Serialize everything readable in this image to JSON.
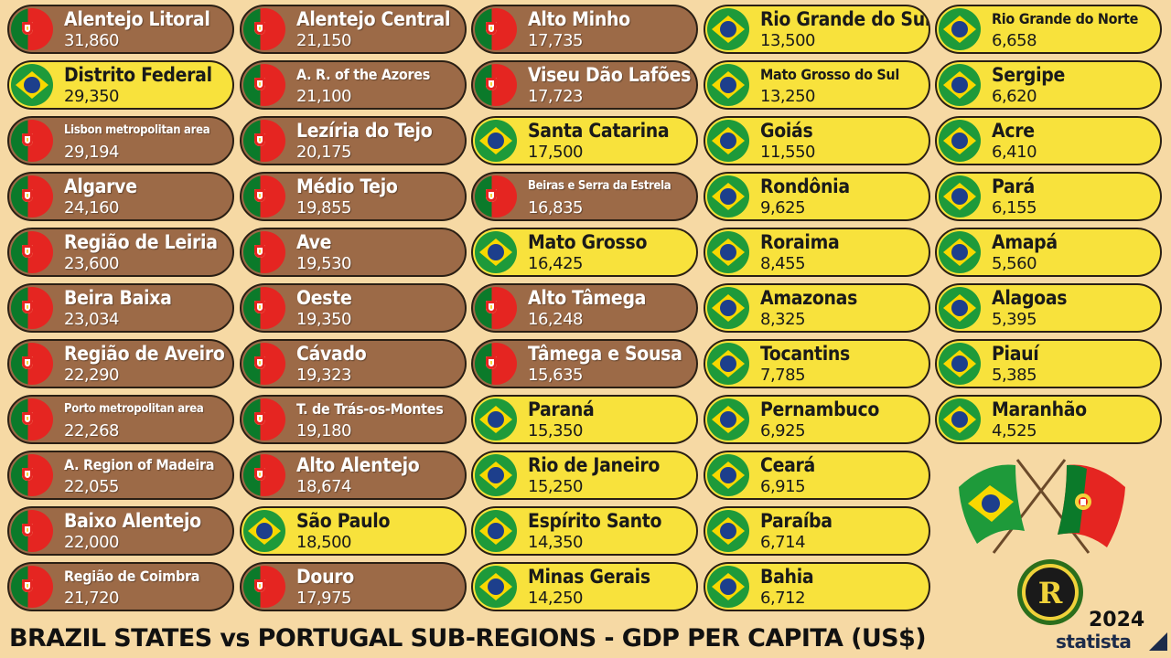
{
  "title": "BRAZIL STATES vs PORTUGAL SUB-REGIONS - GDP PER CAPITA (US$)",
  "year": "2024",
  "source": "statista",
  "colors": {
    "brazil_pill": "#f8e23c",
    "portugal_pill": "#9c6a47",
    "background": "#f6d9a4"
  },
  "logo_letter": "R",
  "columns": [
    [
      {
        "name": "Alentejo Litoral",
        "value": "31,860",
        "country": "pt"
      },
      {
        "name": "Distrito Federal",
        "value": "29,350",
        "country": "br"
      },
      {
        "name": "Lisbon metropolitan area",
        "value": "29,194",
        "country": "pt",
        "small": true
      },
      {
        "name": "Algarve",
        "value": "24,160",
        "country": "pt"
      },
      {
        "name": "Região de Leiria",
        "value": "23,600",
        "country": "pt"
      },
      {
        "name": "Beira Baixa",
        "value": "23,034",
        "country": "pt"
      },
      {
        "name": "Região de Aveiro",
        "value": "22,290",
        "country": "pt"
      },
      {
        "name": "Porto metropolitan area",
        "value": "22,268",
        "country": "pt",
        "small": true
      },
      {
        "name": "A. Region of Madeira",
        "value": "22,055",
        "country": "pt",
        "medium": true
      },
      {
        "name": "Baixo Alentejo",
        "value": "22,000",
        "country": "pt"
      },
      {
        "name": "Região de Coimbra",
        "value": "21,720",
        "country": "pt",
        "medium": true
      }
    ],
    [
      {
        "name": "Alentejo Central",
        "value": "21,150",
        "country": "pt"
      },
      {
        "name": "A. R. of the Azores",
        "value": "21,100",
        "country": "pt",
        "medium": true
      },
      {
        "name": "Lezíria do Tejo",
        "value": "20,175",
        "country": "pt"
      },
      {
        "name": "Médio Tejo",
        "value": "19,855",
        "country": "pt"
      },
      {
        "name": "Ave",
        "value": "19,530",
        "country": "pt"
      },
      {
        "name": "Oeste",
        "value": "19,350",
        "country": "pt"
      },
      {
        "name": "Cávado",
        "value": "19,323",
        "country": "pt"
      },
      {
        "name": "T. de Trás-os-Montes",
        "value": "19,180",
        "country": "pt",
        "medium": true
      },
      {
        "name": "Alto Alentejo",
        "value": "18,674",
        "country": "pt"
      },
      {
        "name": "São Paulo",
        "value": "18,500",
        "country": "br"
      },
      {
        "name": "Douro",
        "value": "17,975",
        "country": "pt"
      }
    ],
    [
      {
        "name": "Alto Minho",
        "value": "17,735",
        "country": "pt"
      },
      {
        "name": "Viseu Dão Lafões",
        "value": "17,723",
        "country": "pt"
      },
      {
        "name": "Santa Catarina",
        "value": "17,500",
        "country": "br"
      },
      {
        "name": "Beiras e Serra da Estrela",
        "value": "16,835",
        "country": "pt",
        "small": true
      },
      {
        "name": "Mato Grosso",
        "value": "16,425",
        "country": "br"
      },
      {
        "name": "Alto Tâmega",
        "value": "16,248",
        "country": "pt"
      },
      {
        "name": "Tâmega e Sousa",
        "value": "15,635",
        "country": "pt"
      },
      {
        "name": "Paraná",
        "value": "15,350",
        "country": "br"
      },
      {
        "name": "Rio de Janeiro",
        "value": "15,250",
        "country": "br"
      },
      {
        "name": "Espírito Santo",
        "value": "14,350",
        "country": "br"
      },
      {
        "name": "Minas Gerais",
        "value": "14,250",
        "country": "br"
      }
    ],
    [
      {
        "name": "Rio Grande do Sul",
        "value": "13,500",
        "country": "br"
      },
      {
        "name": "Mato Grosso do Sul",
        "value": "13,250",
        "country": "br",
        "medium": true
      },
      {
        "name": "Goiás",
        "value": "11,550",
        "country": "br"
      },
      {
        "name": "Rondônia",
        "value": "9,625",
        "country": "br"
      },
      {
        "name": "Roraima",
        "value": "8,455",
        "country": "br"
      },
      {
        "name": "Amazonas",
        "value": "8,325",
        "country": "br"
      },
      {
        "name": "Tocantins",
        "value": "7,785",
        "country": "br"
      },
      {
        "name": "Pernambuco",
        "value": "6,925",
        "country": "br"
      },
      {
        "name": "Ceará",
        "value": "6,915",
        "country": "br"
      },
      {
        "name": "Paraíba",
        "value": "6,714",
        "country": "br"
      },
      {
        "name": "Bahia",
        "value": "6,712",
        "country": "br"
      }
    ],
    [
      {
        "name": "Rio Grande do Norte",
        "value": "6,658",
        "country": "br",
        "medium": true
      },
      {
        "name": "Sergipe",
        "value": "6,620",
        "country": "br"
      },
      {
        "name": "Acre",
        "value": "6,410",
        "country": "br"
      },
      {
        "name": "Pará",
        "value": "6,155",
        "country": "br"
      },
      {
        "name": "Amapá",
        "value": "5,560",
        "country": "br"
      },
      {
        "name": "Alagoas",
        "value": "5,395",
        "country": "br"
      },
      {
        "name": "Piauí",
        "value": "5,385",
        "country": "br"
      },
      {
        "name": "Maranhão",
        "value": "4,525",
        "country": "br"
      }
    ]
  ]
}
